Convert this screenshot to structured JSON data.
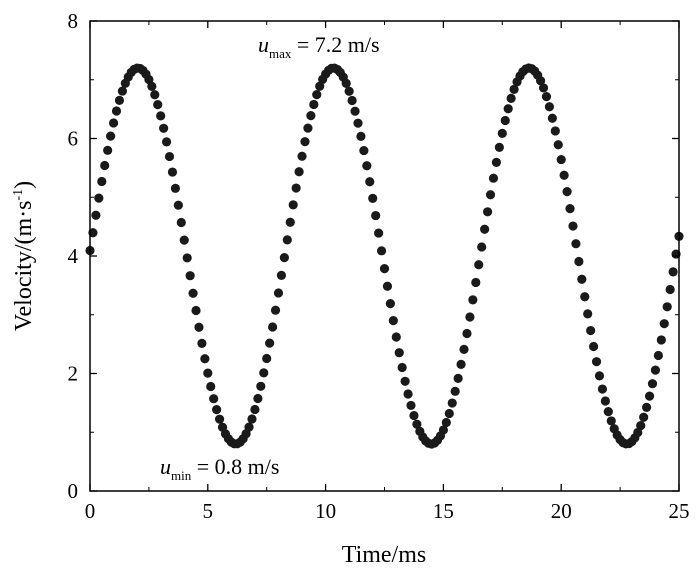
{
  "chart_data": {
    "type": "scatter",
    "title": "",
    "xlabel": "Time/ms",
    "ylabel_main": "Velocity/(m·s",
    "ylabel_sup": "-1",
    "ylabel_close": ")",
    "xlim": [
      0,
      25
    ],
    "ylim": [
      0,
      8
    ],
    "xticks": [
      "0",
      "5",
      "10",
      "15",
      "20",
      "25"
    ],
    "yticks": [
      "0",
      "2",
      "4",
      "6",
      "8"
    ],
    "grid": false,
    "marker_color": "#1a1a1a",
    "annotations": {
      "max": {
        "symbol": "u",
        "sub": "max",
        "text": " = 7.2 m/s"
      },
      "min": {
        "symbol": "u",
        "sub": "min",
        "text": " = 0.8 m/s"
      }
    },
    "series": [
      {
        "model": "sinusoid",
        "mean": 4.0,
        "amplitude": 3.2,
        "period_ms": 8.3,
        "phase_ms": 0.0,
        "t_start": 0.0,
        "t_end": 25.0,
        "t_step": 0.125
      }
    ]
  }
}
